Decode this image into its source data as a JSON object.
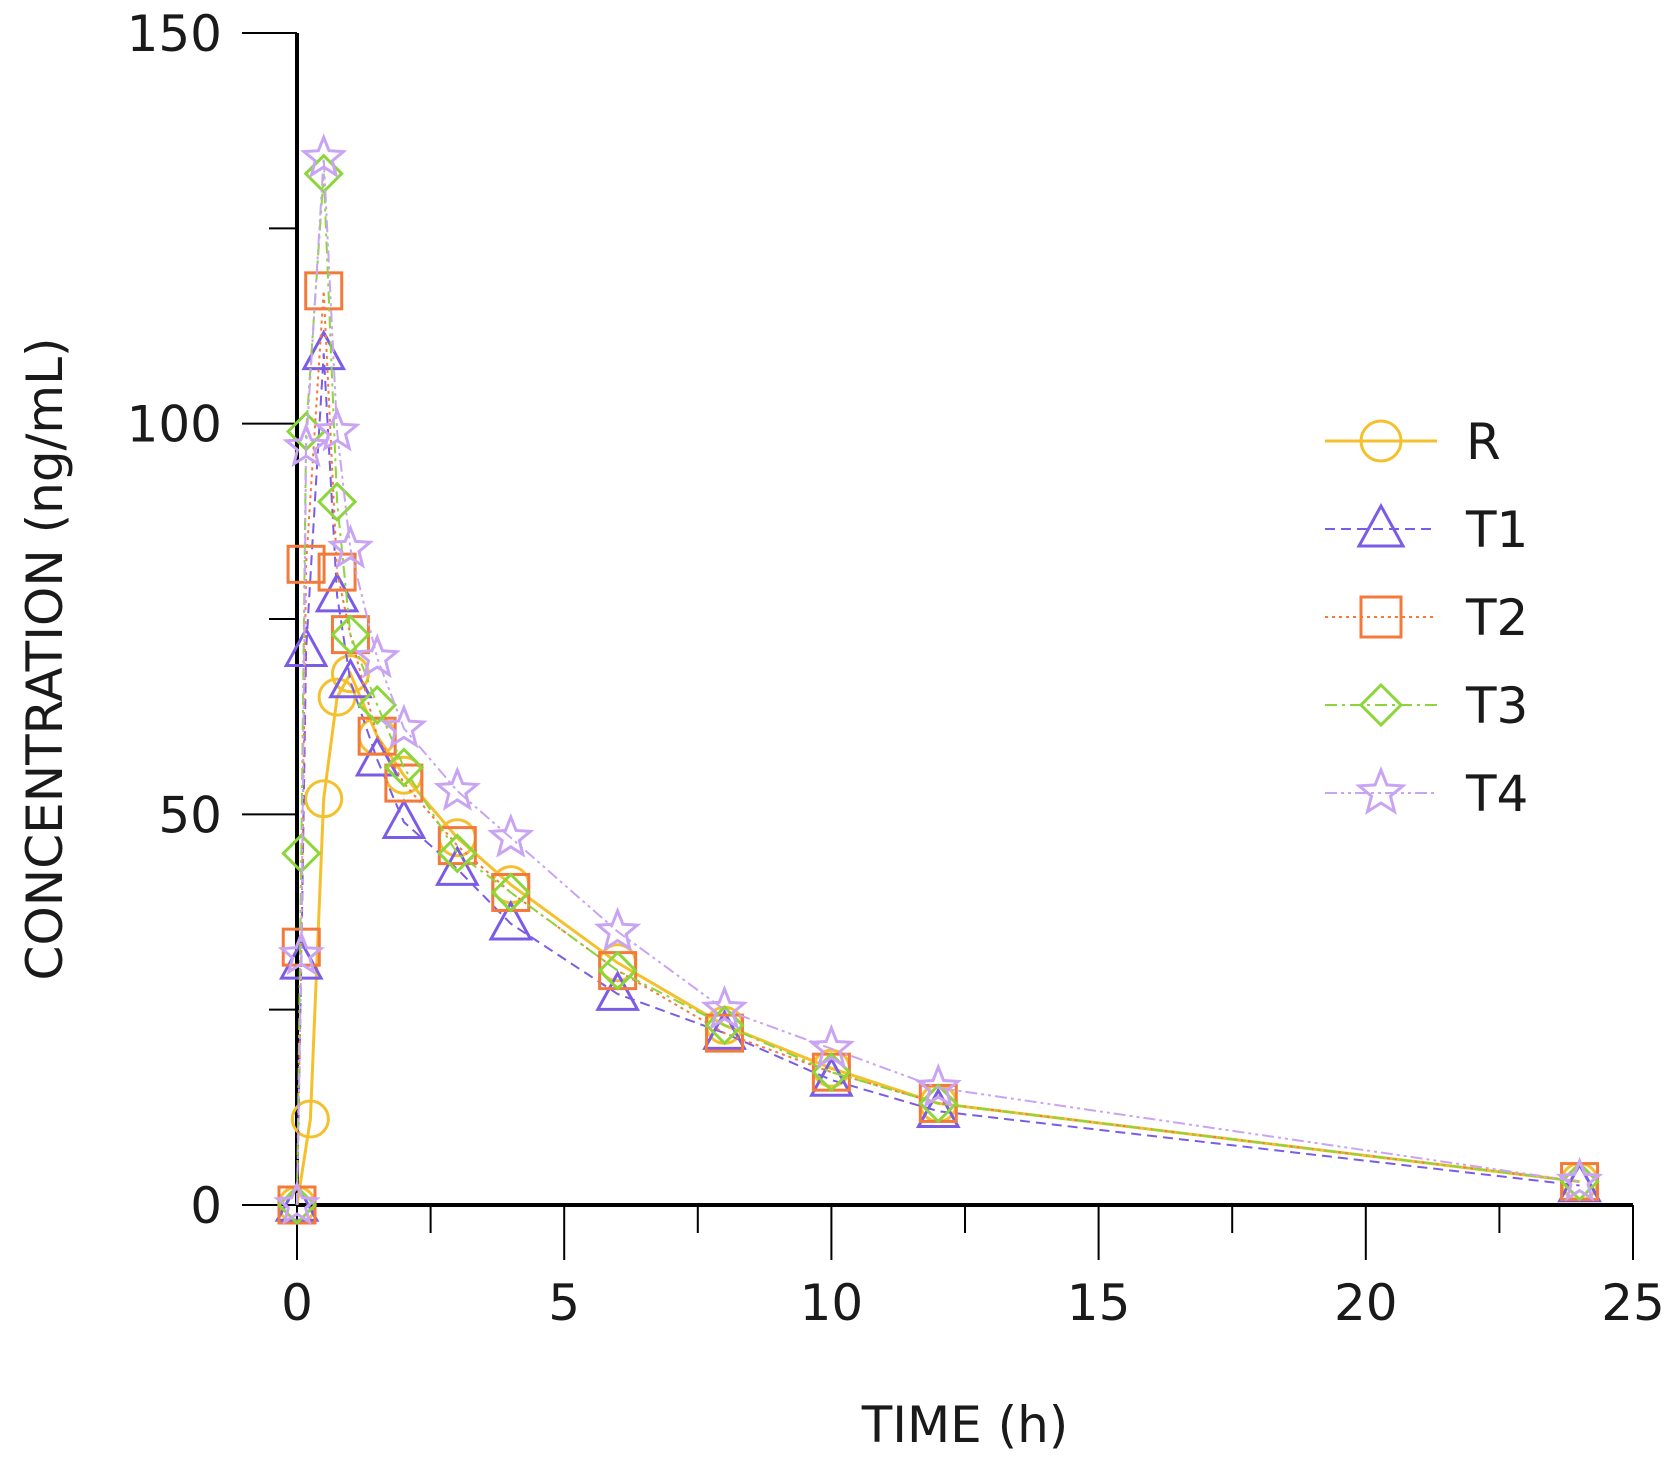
{
  "chart_data": {
    "type": "line",
    "title": "",
    "xlabel": "TIME (h)",
    "ylabel": "CONCENTRATION (ng/mL)",
    "xlim": [
      0,
      25
    ],
    "ylim": [
      0,
      150
    ],
    "xticks": [
      0,
      5,
      10,
      15,
      20,
      25
    ],
    "yticks": [
      0,
      50,
      100,
      150
    ],
    "grid": false,
    "legend_position": "right",
    "series": [
      {
        "name": "R",
        "marker": "circle",
        "color": "#F5C02E",
        "dash": "solid",
        "x": [
          0,
          0.25,
          0.5,
          0.75,
          1,
          1.5,
          2,
          3,
          4,
          6,
          8,
          10,
          12,
          24
        ],
        "y": [
          0,
          11,
          52,
          65,
          68,
          60,
          55,
          47,
          41,
          31,
          23,
          17.5,
          13,
          3
        ]
      },
      {
        "name": "T1",
        "marker": "triangle",
        "color": "#7B5CE6",
        "dash": "dashed",
        "x": [
          0,
          0.08,
          0.17,
          0.5,
          0.75,
          1,
          1.5,
          2,
          3,
          4,
          6,
          8,
          10,
          12,
          24
        ],
        "y": [
          0,
          31,
          71,
          109,
          78,
          67,
          57,
          49,
          43,
          36,
          27,
          22,
          16,
          12,
          2.5
        ]
      },
      {
        "name": "T2",
        "marker": "square",
        "color": "#F47A3C",
        "dash": "dotted",
        "x": [
          0,
          0.08,
          0.17,
          0.5,
          0.75,
          1,
          1.5,
          2,
          3,
          4,
          6,
          8,
          10,
          12,
          24
        ],
        "y": [
          0,
          33,
          82,
          117,
          81,
          73,
          60,
          54,
          46,
          40,
          30,
          22,
          17,
          13,
          3
        ]
      },
      {
        "name": "T3",
        "marker": "diamond",
        "color": "#8CD63A",
        "dash": "dashdot",
        "x": [
          0,
          0.08,
          0.17,
          0.5,
          0.75,
          1,
          1.5,
          2,
          3,
          4,
          6,
          8,
          10,
          12,
          24
        ],
        "y": [
          0,
          45,
          99,
          132,
          90,
          73,
          64,
          56,
          45,
          40,
          30,
          23,
          17,
          13,
          3
        ]
      },
      {
        "name": "T4",
        "marker": "star",
        "color": "#C9A4F2",
        "dash": "dashdotdot",
        "x": [
          0,
          0.08,
          0.17,
          0.5,
          0.75,
          1,
          1.5,
          2,
          3,
          4,
          6,
          8,
          10,
          12,
          24
        ],
        "y": [
          0,
          32,
          97,
          134,
          99,
          84,
          70,
          61,
          53,
          47,
          35,
          25,
          20,
          15,
          3
        ]
      }
    ]
  }
}
